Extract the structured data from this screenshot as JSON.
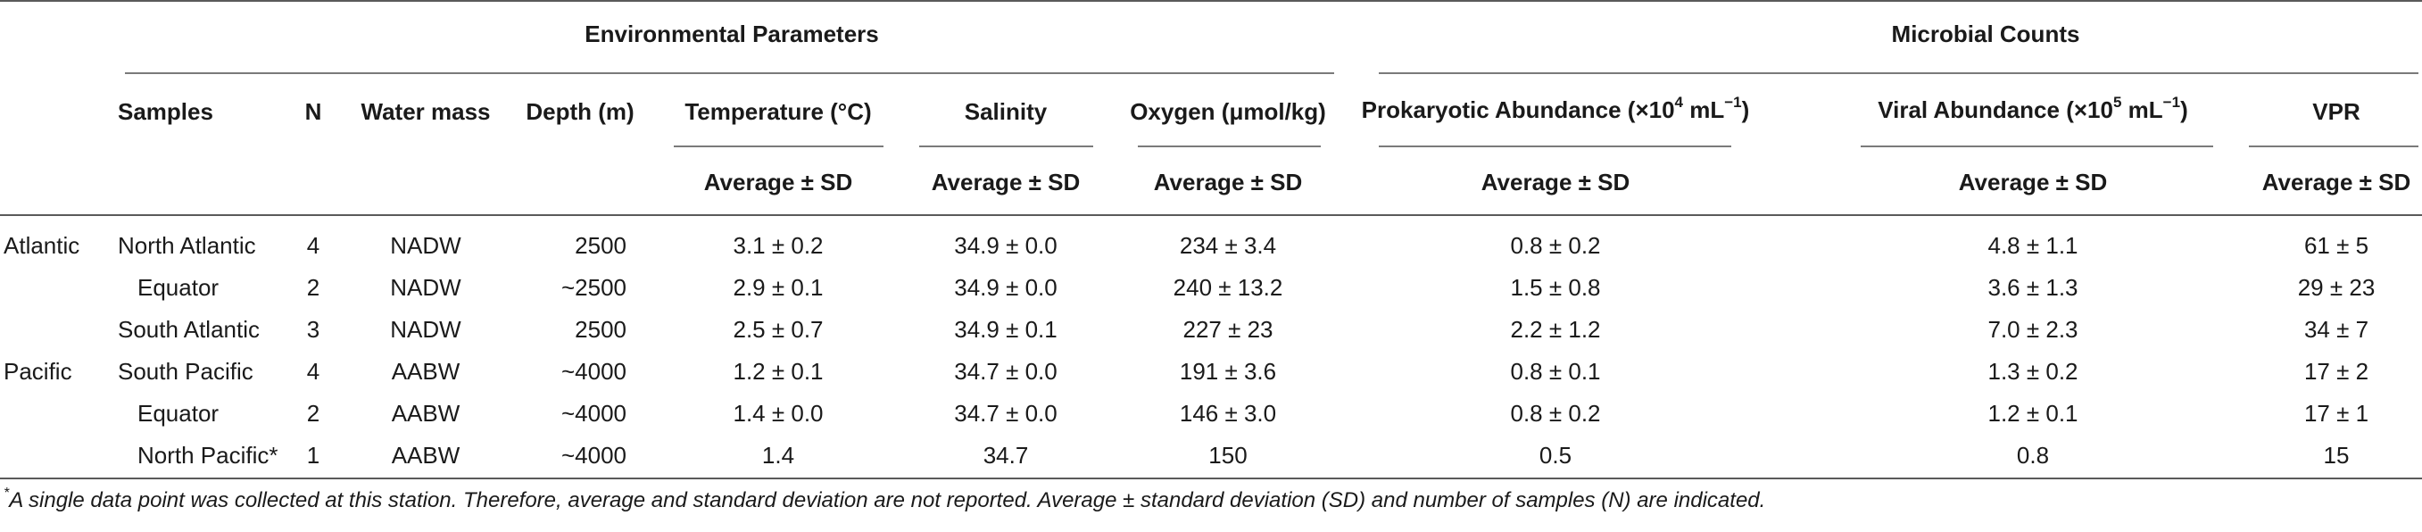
{
  "groups": {
    "environmental": "Environmental Parameters",
    "microbial": "Microbial Counts"
  },
  "headers": {
    "samples": "Samples",
    "n": "N",
    "water_mass": "Water mass",
    "depth": "Depth (m)",
    "temperature": "Temperature (°C)",
    "salinity": "Salinity",
    "oxygen": "Oxygen (μmol/kg)",
    "prok_pre": "Prokaryotic Abundance (×10",
    "prok_exp": "4",
    "prok_mid": " mL",
    "prok_exp2": "−1",
    "prok_post": ")",
    "viral_pre": "Viral Abundance (×10",
    "viral_exp": "5",
    "viral_mid": " mL",
    "viral_exp2": "−1",
    "viral_post": ")",
    "vpr": "VPR",
    "avg_sd": "Average ± SD"
  },
  "rows": [
    {
      "region": "Atlantic",
      "sample": "North Atlantic",
      "n": "4",
      "water_mass": "NADW",
      "depth": "2500",
      "temperature": "3.1 ± 0.2",
      "salinity": "34.9 ± 0.0",
      "oxygen": "234 ± 3.4",
      "prokaryotic": "0.8 ± 0.2",
      "viral": "4.8 ± 1.1",
      "vpr": "61 ±  5"
    },
    {
      "region": "",
      "sample": "Equator",
      "n": "2",
      "water_mass": "NADW",
      "depth": "~2500",
      "temperature": "2.9 ± 0.1",
      "salinity": "34.9 ± 0.0",
      "oxygen": "240 ± 13.2",
      "prokaryotic": "1.5 ± 0.8",
      "viral": "3.6 ± 1.3",
      "vpr": "29 ± 23"
    },
    {
      "region": "",
      "sample": "South Atlantic",
      "n": "3",
      "water_mass": "NADW",
      "depth": "2500",
      "temperature": "2.5 ±  0.7",
      "salinity": "34.9 ± 0.1",
      "oxygen": "227 ± 23",
      "prokaryotic": "2.2 ± 1.2",
      "viral": "7.0 ± 2.3",
      "vpr": "34 ± 7"
    },
    {
      "region": "Pacific",
      "sample": "South Pacific",
      "n": "4",
      "water_mass": "AABW",
      "depth": "~4000",
      "temperature": "1.2 ± 0.1",
      "salinity": "34.7 ± 0.0",
      "oxygen": "191 ± 3.6",
      "prokaryotic": "0.8 ± 0.1",
      "viral": "1.3 ± 0.2",
      "vpr": "17 ± 2"
    },
    {
      "region": "",
      "sample": "Equator",
      "n": "2",
      "water_mass": "AABW",
      "depth": "~4000",
      "temperature": "1.4 ± 0.0",
      "salinity": "34.7 ± 0.0",
      "oxygen": "146 ± 3.0",
      "prokaryotic": "0.8 ± 0.2",
      "viral": "1.2 ± 0.1",
      "vpr": "17 ± 1"
    },
    {
      "region": "",
      "sample": "North Pacific*",
      "n": "1",
      "water_mass": "AABW",
      "depth": "~4000",
      "temperature": "1.4",
      "salinity": "34.7",
      "oxygen": "150",
      "prokaryotic": "0.5",
      "viral": "0.8",
      "vpr": "15"
    }
  ],
  "footnote": {
    "mark": "*",
    "text": "A single data point was collected at this station. Therefore, average and standard deviation are not reported. Average ± standard deviation (SD) and number of samples (N) are indicated."
  }
}
